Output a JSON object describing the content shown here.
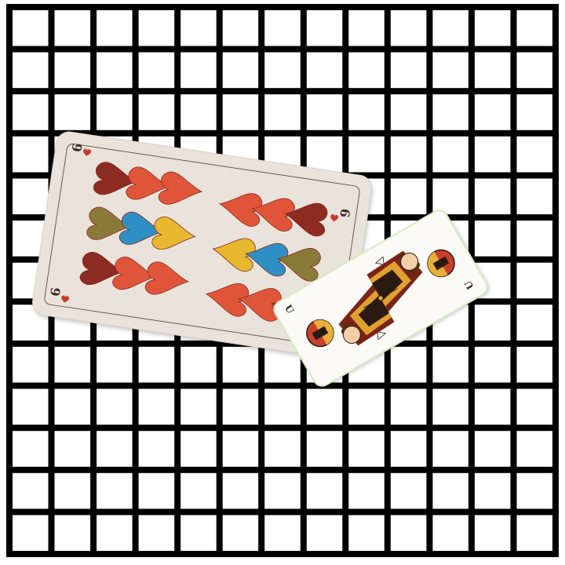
{
  "colors": {
    "background": "#ffffff",
    "grid_line": "#000000",
    "card_face_cream": "#e9e3db",
    "card_face_white": "#fbfaf6",
    "heart_red": "#e0553a",
    "heart_dark_red": "#8c2b22",
    "heart_blue": "#2e8fc4",
    "heart_yellow": "#e8b830",
    "heart_olive": "#8a7a3a",
    "card_outline_green": "#d8ecc0"
  },
  "board": {
    "type": "grid",
    "columns": 13,
    "rows": 13
  },
  "cards": [
    {
      "id": "heart-nine",
      "rank": "9",
      "suit": "hearts",
      "index_label": "9",
      "pip_count": 18
    },
    {
      "id": "unter",
      "rank": "Unter",
      "suit": "acorns",
      "index_label": "U",
      "figure": "double-headed-figure-icon"
    }
  ]
}
